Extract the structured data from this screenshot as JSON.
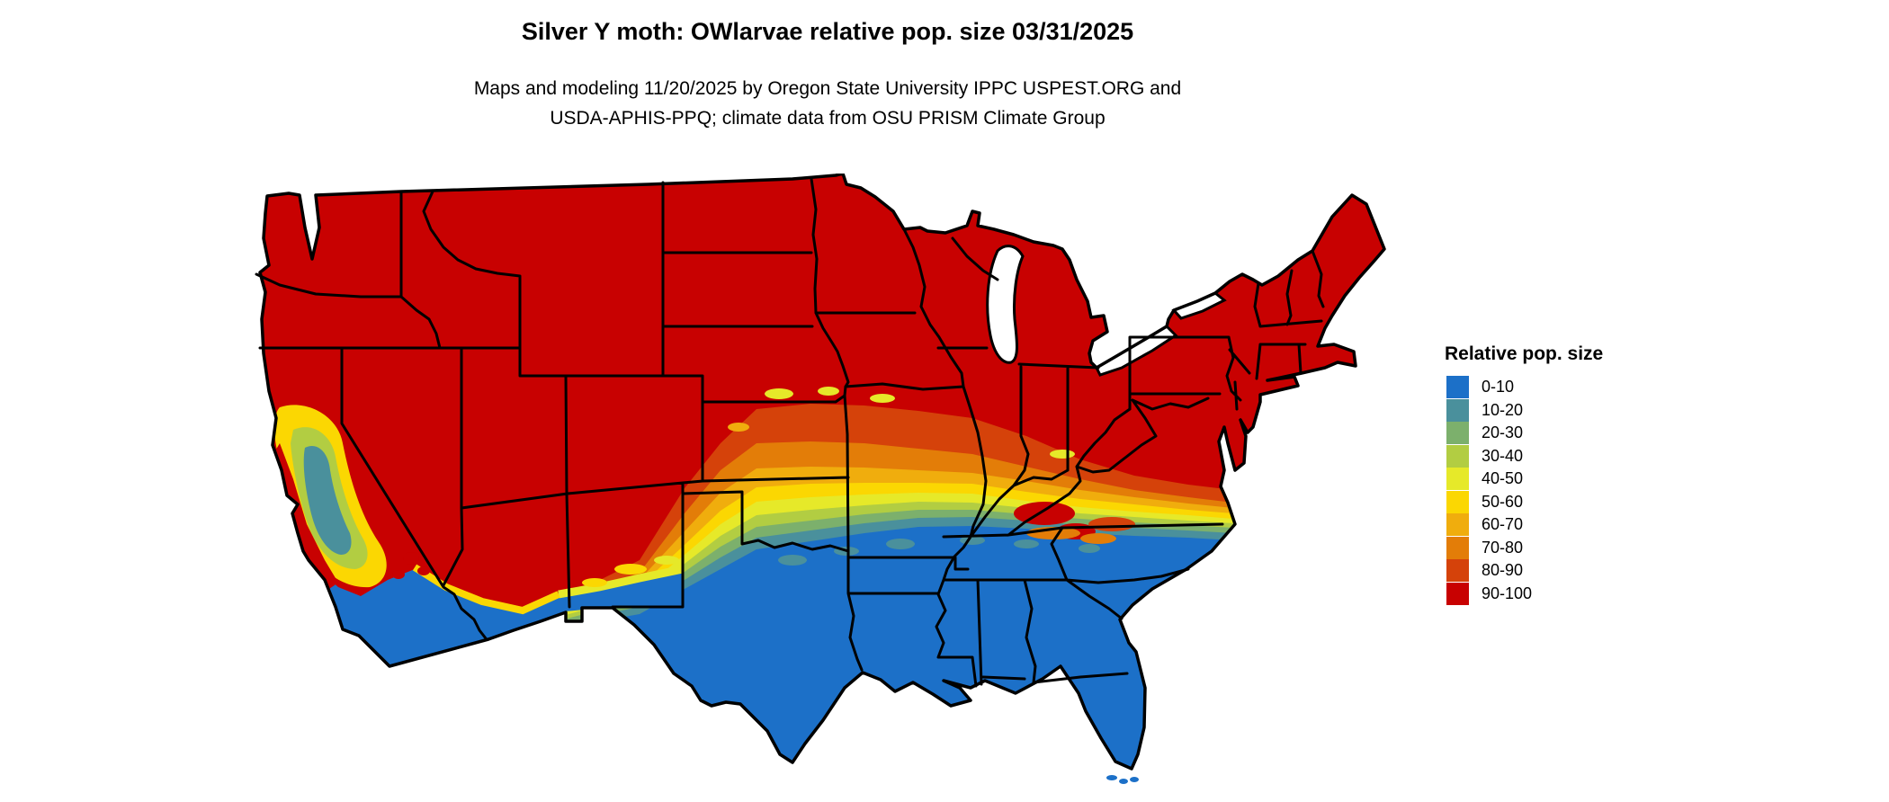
{
  "header": {
    "title": "Silver Y moth: OWlarvae relative pop. size 03/31/2025",
    "subtitle_line1": "Maps and modeling 11/20/2025 by Oregon State University IPPC USPEST.ORG and",
    "subtitle_line2": "USDA-APHIS-PPQ; climate data from OSU PRISM Climate Group"
  },
  "legend": {
    "title": "Relative pop. size",
    "items": [
      {
        "label": "0-10",
        "color": "#1C70C8"
      },
      {
        "label": "10-20",
        "color": "#4A909C"
      },
      {
        "label": "20-30",
        "color": "#7CB06C"
      },
      {
        "label": "30-40",
        "color": "#B2CD42"
      },
      {
        "label": "40-50",
        "color": "#E6E929"
      },
      {
        "label": "50-60",
        "color": "#FBD702"
      },
      {
        "label": "60-70",
        "color": "#F0AD0D"
      },
      {
        "label": "70-80",
        "color": "#E37D08"
      },
      {
        "label": "80-90",
        "color": "#D5420A"
      },
      {
        "label": "90-100",
        "color": "#C80101"
      }
    ]
  },
  "map": {
    "region": "Contiguous United States",
    "kind": "choropleth raster map with state borders",
    "variable": "relative population size (0-100)",
    "border_color": "#000000",
    "water_background": "#FFFFFF",
    "pattern_summary": "Northern two-thirds of the US is 90-100 (red); a west-east transition band (orange to yellow to green to teal) crosses the central/southern states; southern third (southern California, southern Arizona and New Mexico, Texas, Gulf states, Florida, coastal Carolinas) is 0-10 (blue); California's Central Valley shows a mixed yellow/green/teal pocket with red coastal ranges."
  }
}
